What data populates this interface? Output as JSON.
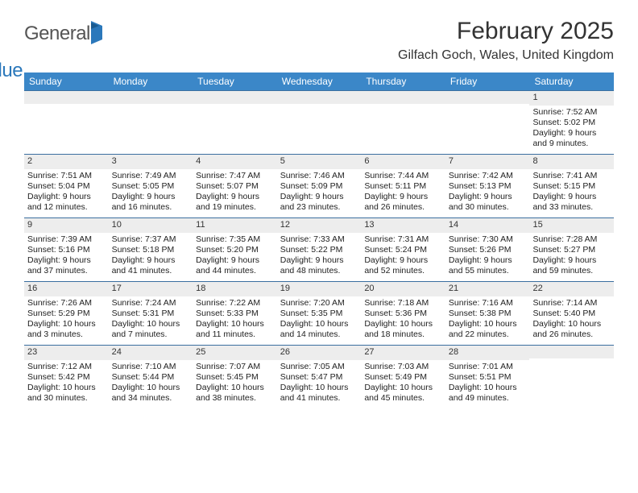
{
  "logo": {
    "text1": "General",
    "text2": "Blue"
  },
  "header": {
    "month": "February 2025",
    "location": "Gilfach Goch, Wales, United Kingdom"
  },
  "colors": {
    "header_bg": "#3b87c8",
    "header_text": "#ffffff",
    "daynum_bg": "#ededed",
    "divider": "#3b6fa0",
    "logo_accent": "#2b78bb"
  },
  "weekdays": [
    "Sunday",
    "Monday",
    "Tuesday",
    "Wednesday",
    "Thursday",
    "Friday",
    "Saturday"
  ],
  "weeks": [
    [
      {
        "n": "",
        "sr": "",
        "ss": "",
        "dl": ""
      },
      {
        "n": "",
        "sr": "",
        "ss": "",
        "dl": ""
      },
      {
        "n": "",
        "sr": "",
        "ss": "",
        "dl": ""
      },
      {
        "n": "",
        "sr": "",
        "ss": "",
        "dl": ""
      },
      {
        "n": "",
        "sr": "",
        "ss": "",
        "dl": ""
      },
      {
        "n": "",
        "sr": "",
        "ss": "",
        "dl": ""
      },
      {
        "n": "1",
        "sr": "Sunrise: 7:52 AM",
        "ss": "Sunset: 5:02 PM",
        "dl": "Daylight: 9 hours and 9 minutes."
      }
    ],
    [
      {
        "n": "2",
        "sr": "Sunrise: 7:51 AM",
        "ss": "Sunset: 5:04 PM",
        "dl": "Daylight: 9 hours and 12 minutes."
      },
      {
        "n": "3",
        "sr": "Sunrise: 7:49 AM",
        "ss": "Sunset: 5:05 PM",
        "dl": "Daylight: 9 hours and 16 minutes."
      },
      {
        "n": "4",
        "sr": "Sunrise: 7:47 AM",
        "ss": "Sunset: 5:07 PM",
        "dl": "Daylight: 9 hours and 19 minutes."
      },
      {
        "n": "5",
        "sr": "Sunrise: 7:46 AM",
        "ss": "Sunset: 5:09 PM",
        "dl": "Daylight: 9 hours and 23 minutes."
      },
      {
        "n": "6",
        "sr": "Sunrise: 7:44 AM",
        "ss": "Sunset: 5:11 PM",
        "dl": "Daylight: 9 hours and 26 minutes."
      },
      {
        "n": "7",
        "sr": "Sunrise: 7:42 AM",
        "ss": "Sunset: 5:13 PM",
        "dl": "Daylight: 9 hours and 30 minutes."
      },
      {
        "n": "8",
        "sr": "Sunrise: 7:41 AM",
        "ss": "Sunset: 5:15 PM",
        "dl": "Daylight: 9 hours and 33 minutes."
      }
    ],
    [
      {
        "n": "9",
        "sr": "Sunrise: 7:39 AM",
        "ss": "Sunset: 5:16 PM",
        "dl": "Daylight: 9 hours and 37 minutes."
      },
      {
        "n": "10",
        "sr": "Sunrise: 7:37 AM",
        "ss": "Sunset: 5:18 PM",
        "dl": "Daylight: 9 hours and 41 minutes."
      },
      {
        "n": "11",
        "sr": "Sunrise: 7:35 AM",
        "ss": "Sunset: 5:20 PM",
        "dl": "Daylight: 9 hours and 44 minutes."
      },
      {
        "n": "12",
        "sr": "Sunrise: 7:33 AM",
        "ss": "Sunset: 5:22 PM",
        "dl": "Daylight: 9 hours and 48 minutes."
      },
      {
        "n": "13",
        "sr": "Sunrise: 7:31 AM",
        "ss": "Sunset: 5:24 PM",
        "dl": "Daylight: 9 hours and 52 minutes."
      },
      {
        "n": "14",
        "sr": "Sunrise: 7:30 AM",
        "ss": "Sunset: 5:26 PM",
        "dl": "Daylight: 9 hours and 55 minutes."
      },
      {
        "n": "15",
        "sr": "Sunrise: 7:28 AM",
        "ss": "Sunset: 5:27 PM",
        "dl": "Daylight: 9 hours and 59 minutes."
      }
    ],
    [
      {
        "n": "16",
        "sr": "Sunrise: 7:26 AM",
        "ss": "Sunset: 5:29 PM",
        "dl": "Daylight: 10 hours and 3 minutes."
      },
      {
        "n": "17",
        "sr": "Sunrise: 7:24 AM",
        "ss": "Sunset: 5:31 PM",
        "dl": "Daylight: 10 hours and 7 minutes."
      },
      {
        "n": "18",
        "sr": "Sunrise: 7:22 AM",
        "ss": "Sunset: 5:33 PM",
        "dl": "Daylight: 10 hours and 11 minutes."
      },
      {
        "n": "19",
        "sr": "Sunrise: 7:20 AM",
        "ss": "Sunset: 5:35 PM",
        "dl": "Daylight: 10 hours and 14 minutes."
      },
      {
        "n": "20",
        "sr": "Sunrise: 7:18 AM",
        "ss": "Sunset: 5:36 PM",
        "dl": "Daylight: 10 hours and 18 minutes."
      },
      {
        "n": "21",
        "sr": "Sunrise: 7:16 AM",
        "ss": "Sunset: 5:38 PM",
        "dl": "Daylight: 10 hours and 22 minutes."
      },
      {
        "n": "22",
        "sr": "Sunrise: 7:14 AM",
        "ss": "Sunset: 5:40 PM",
        "dl": "Daylight: 10 hours and 26 minutes."
      }
    ],
    [
      {
        "n": "23",
        "sr": "Sunrise: 7:12 AM",
        "ss": "Sunset: 5:42 PM",
        "dl": "Daylight: 10 hours and 30 minutes."
      },
      {
        "n": "24",
        "sr": "Sunrise: 7:10 AM",
        "ss": "Sunset: 5:44 PM",
        "dl": "Daylight: 10 hours and 34 minutes."
      },
      {
        "n": "25",
        "sr": "Sunrise: 7:07 AM",
        "ss": "Sunset: 5:45 PM",
        "dl": "Daylight: 10 hours and 38 minutes."
      },
      {
        "n": "26",
        "sr": "Sunrise: 7:05 AM",
        "ss": "Sunset: 5:47 PM",
        "dl": "Daylight: 10 hours and 41 minutes."
      },
      {
        "n": "27",
        "sr": "Sunrise: 7:03 AM",
        "ss": "Sunset: 5:49 PM",
        "dl": "Daylight: 10 hours and 45 minutes."
      },
      {
        "n": "28",
        "sr": "Sunrise: 7:01 AM",
        "ss": "Sunset: 5:51 PM",
        "dl": "Daylight: 10 hours and 49 minutes."
      },
      {
        "n": "",
        "sr": "",
        "ss": "",
        "dl": ""
      }
    ]
  ]
}
